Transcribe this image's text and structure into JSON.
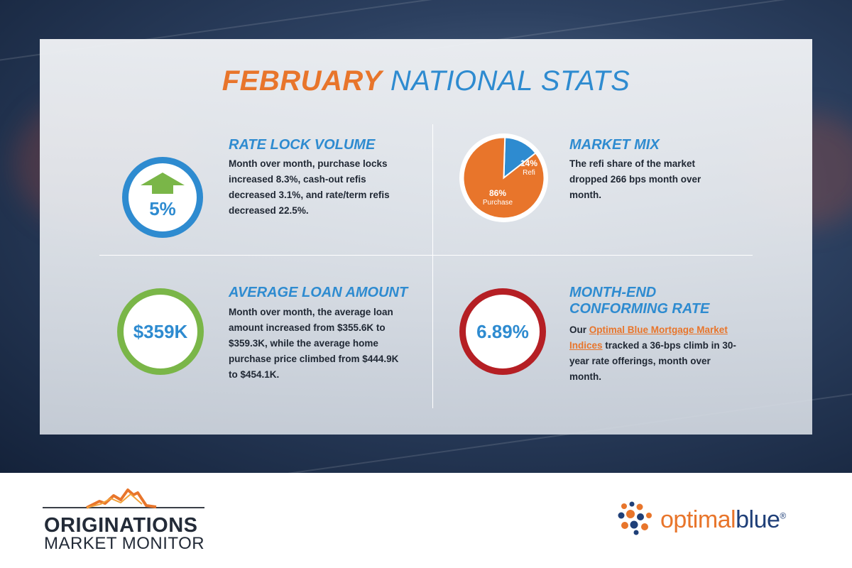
{
  "title": {
    "part1": "FEBRUARY",
    "part2": "NATIONAL STATS"
  },
  "stats": {
    "rate_lock": {
      "value": "5%",
      "heading": "RATE LOCK VOLUME",
      "body": "Month over month, purchase locks increased 8.3%, cash-out refis decreased 3.1%, and rate/term refis decreased 22.5%.",
      "trend_icon": "up-arrow-icon"
    },
    "market_mix": {
      "heading": "MARKET MIX",
      "body": "The refi share of the market dropped 266 bps month over month.",
      "pie": {
        "slices": [
          {
            "label": "Purchase",
            "value": "86%",
            "fraction": 0.86,
            "color": "#e8752b"
          },
          {
            "label": "Refi",
            "value": "14%",
            "fraction": 0.14,
            "color": "#2e8bd0"
          }
        ]
      }
    },
    "avg_loan": {
      "value": "$359K",
      "heading": "AVERAGE LOAN AMOUNT",
      "body": "Month over month, the average loan amount increased from $355.6K to $359.3K, while the average home purchase price climbed from $444.9K to $454.1K."
    },
    "rate": {
      "value": "6.89%",
      "heading_line1": "MONTH-END",
      "heading_line2": "CONFORMING RATE",
      "body_prefix": "Our",
      "link_text": "Optimal Blue Mortgage Market Indices",
      "body_suffix": "tracked a 36-bps climb in 30-year rate offerings, month over month."
    }
  },
  "footer": {
    "left_logo_line1": "ORIGINATIONS",
    "left_logo_line2": "MARKET MONITOR",
    "right_logo_part1": "optimal",
    "right_logo_part2": "blue",
    "right_logo_mark": "®"
  },
  "colors": {
    "orange": "#e8752b",
    "blue": "#2e8bd0",
    "green": "#7ab648",
    "red": "#b51f24",
    "dark": "#1f2733"
  }
}
